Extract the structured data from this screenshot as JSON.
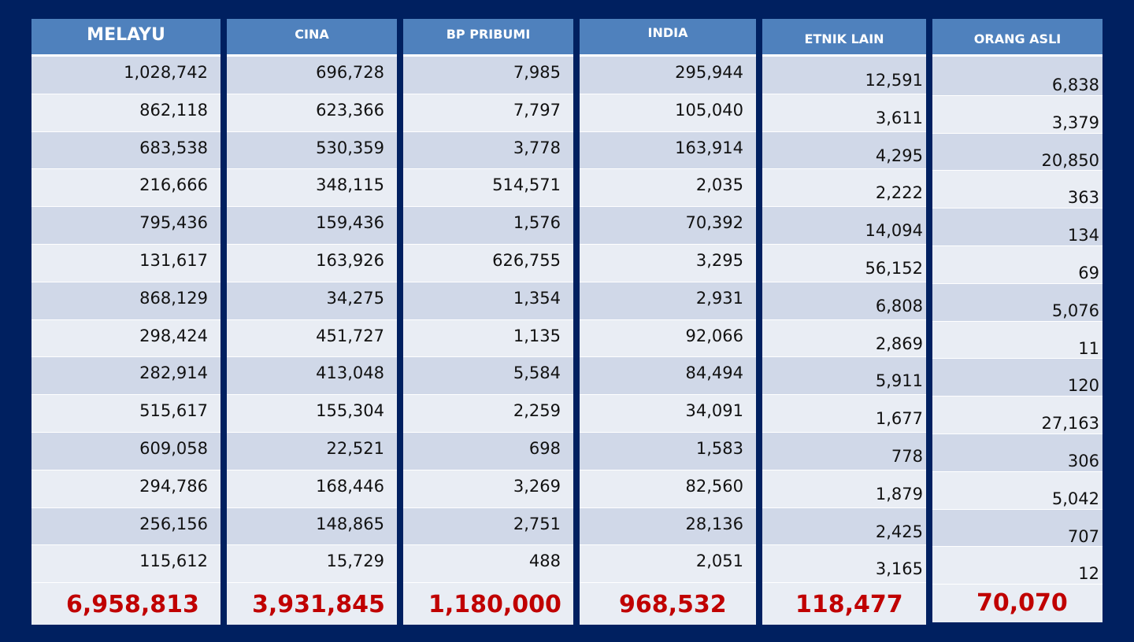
{
  "columns": [
    {
      "header": "MELAYU",
      "values": [
        "1,028,742",
        "862,118",
        "683,538",
        "216,666",
        "795,436",
        "131,617",
        "868,129",
        "298,424",
        "282,914",
        "515,617",
        "609,058",
        "294,786",
        "256,156",
        "115,612"
      ],
      "total": "6,958,813"
    },
    {
      "header": "CINA",
      "values": [
        "696,728",
        "623,366",
        "530,359",
        "348,115",
        "159,436",
        "163,926",
        "34,275",
        "451,727",
        "413,048",
        "155,304",
        "22,521",
        "168,446",
        "148,865",
        "15,729"
      ],
      "total": "3,931,845"
    },
    {
      "header": "BP PRIBUMI",
      "values": [
        "7,985",
        "7,797",
        "3,778",
        "514,571",
        "1,576",
        "626,755",
        "1,354",
        "1,135",
        "5,584",
        "2,259",
        "698",
        "3,269",
        "2,751",
        "488"
      ],
      "total": "1,180,000"
    },
    {
      "header": "INDIA",
      "values": [
        "295,944",
        "105,040",
        "163,914",
        "2,035",
        "70,392",
        "3,295",
        "2,931",
        "92,066",
        "84,494",
        "34,091",
        "1,583",
        "82,560",
        "28,136",
        "2,051"
      ],
      "total": "968,532"
    },
    {
      "header": "ETNIK LAIN",
      "values": [
        "12,591",
        "3,611",
        "4,295",
        "2,222",
        "14,094",
        "56,152",
        "6,808",
        "2,869",
        "5,911",
        "1,677",
        "778",
        "1,879",
        "2,425",
        "3,165"
      ],
      "total": "118,477"
    },
    {
      "header": "ORANG ASLI",
      "values": [
        "6,838",
        "3,379",
        "20,850",
        "363",
        "134",
        "69",
        "5,076",
        "11",
        "120",
        "27,163",
        "306",
        "5,042",
        "707",
        "12"
      ],
      "total": "70,070"
    }
  ],
  "colors": {
    "background": "#002060",
    "header": "#4f81bd",
    "row_dark": "#d0d8e8",
    "row_light": "#e9edf4",
    "total_text": "#c00000"
  }
}
